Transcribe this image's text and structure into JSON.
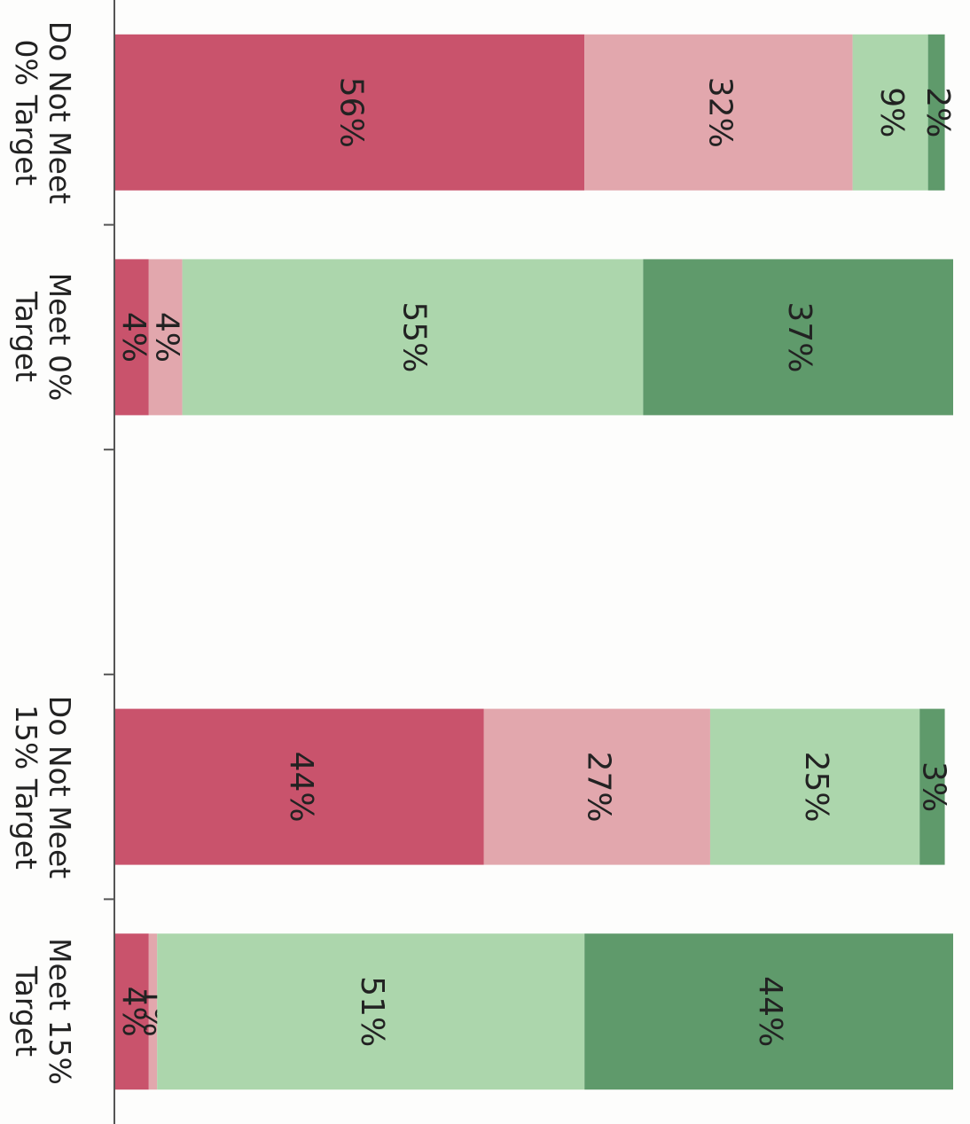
{
  "chart_data": {
    "type": "stacked-bar",
    "orientation": "horizontal",
    "categories": [
      "Do Not Meet 0% Target",
      "Meet 0% Target",
      null,
      "Do Not Meet 15% Target",
      "Meet 15% Target"
    ],
    "xlim": [
      0,
      100
    ],
    "series": [
      {
        "color": "#c9536c",
        "values": [
          56,
          4,
          null,
          44,
          4
        ],
        "value_labels": [
          "56%",
          "4%",
          null,
          "44%",
          "4%"
        ]
      },
      {
        "color": "#e2a7ad",
        "values": [
          32,
          4,
          null,
          27,
          1
        ],
        "value_labels": [
          "32%",
          "4%",
          null,
          "27%",
          "1%"
        ]
      },
      {
        "color": "#acd6ac",
        "values": [
          9,
          55,
          null,
          25,
          51
        ],
        "value_labels": [
          "9%",
          "55%",
          null,
          "25%",
          "51%"
        ]
      },
      {
        "color": "#5f9a6b",
        "values": [
          2,
          37,
          null,
          3,
          44
        ],
        "value_labels": [
          "2%",
          "37%",
          null,
          "3%",
          "44%"
        ]
      }
    ]
  }
}
